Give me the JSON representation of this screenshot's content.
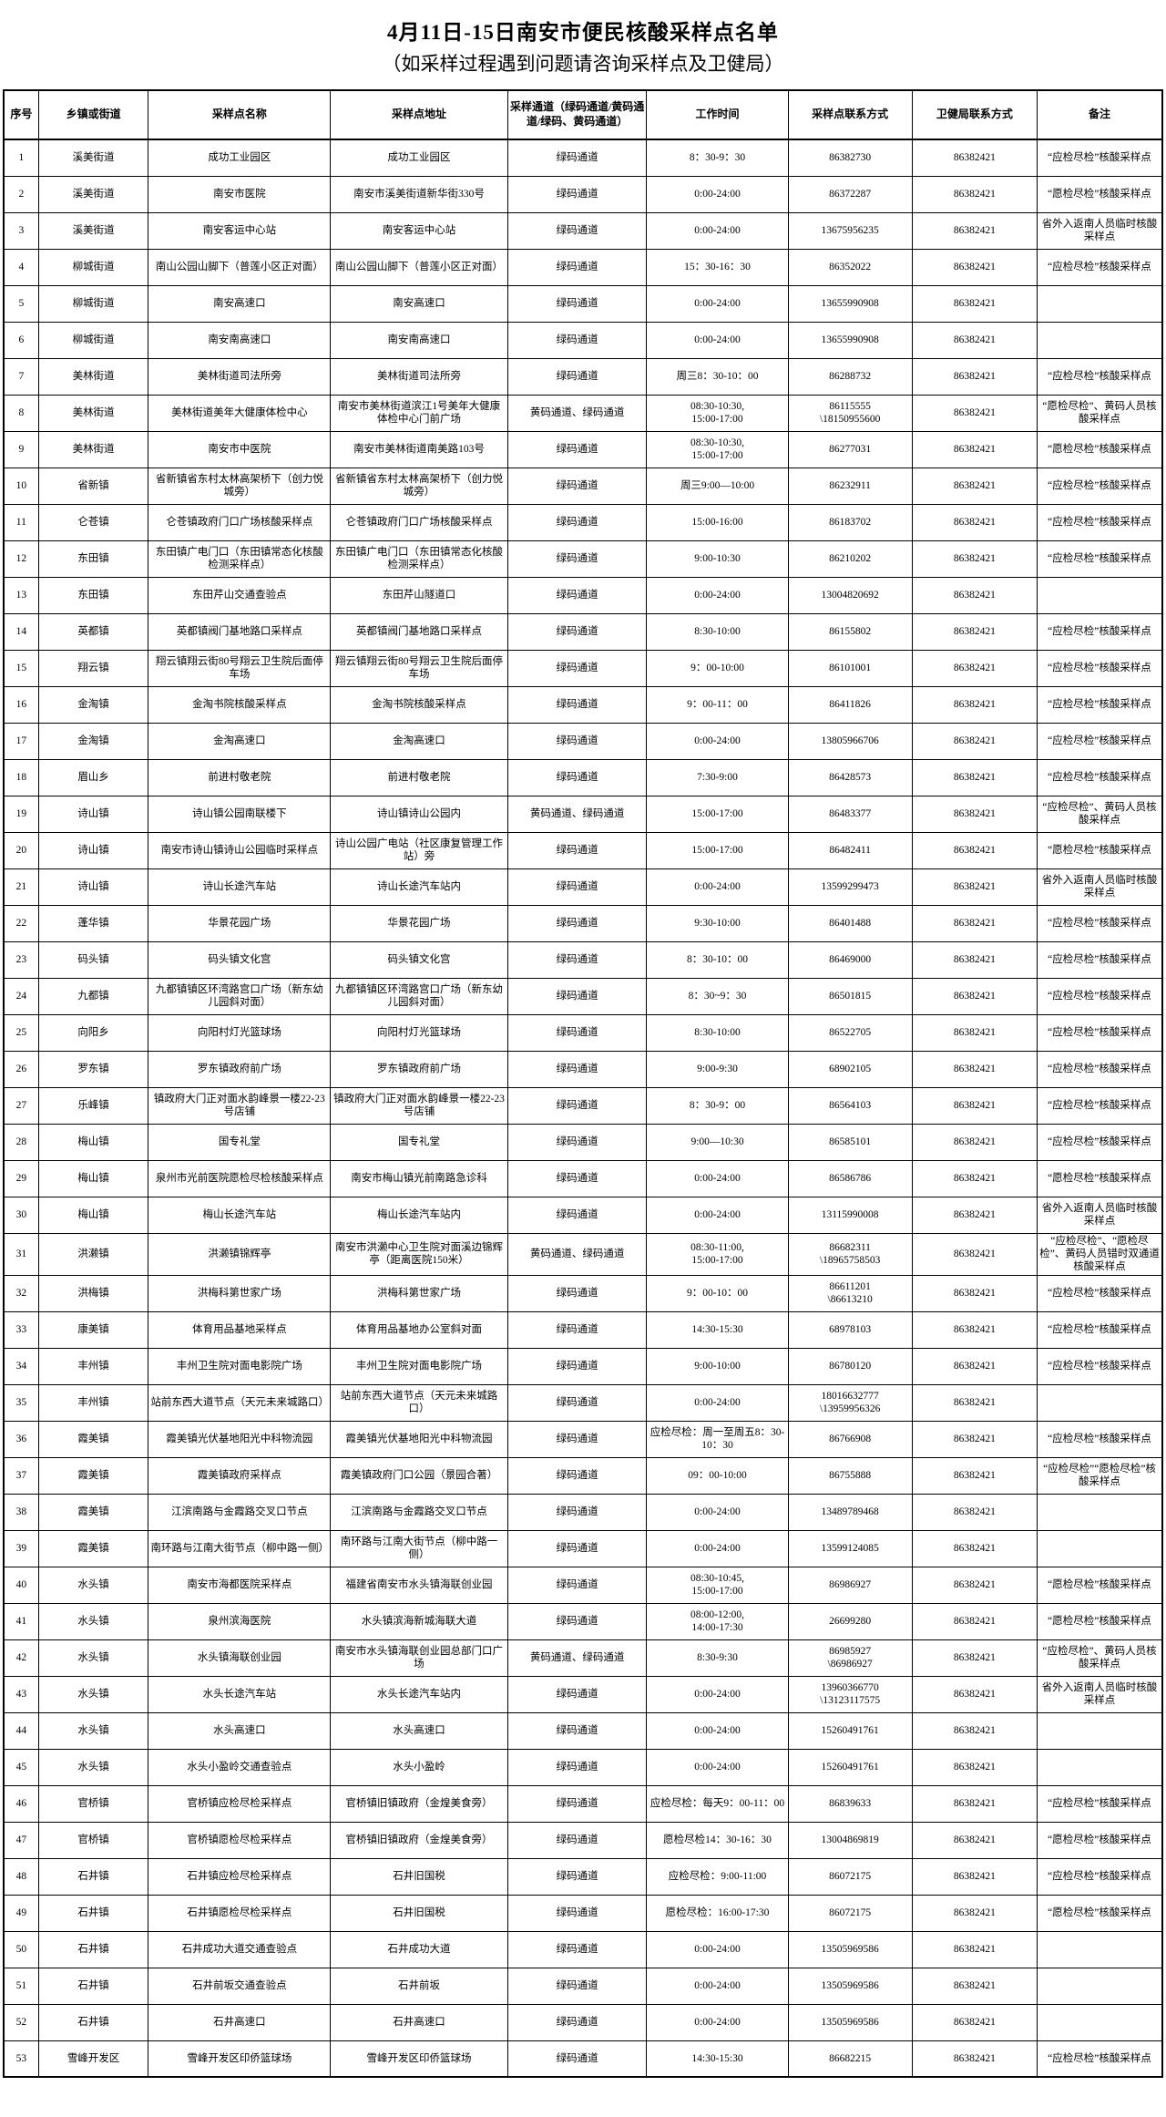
{
  "title": "4月11日-15日南安市便民核酸采样点名单",
  "subtitle": "（如采样过程遇到问题请咨询采样点及卫健局）",
  "table": {
    "headers": [
      "序号",
      "乡镇或街道",
      "采样点名称",
      "采样点地址",
      "采样通道（绿码通道/黄码通道/绿码、黄码通道）",
      "工作时间",
      "采样点联系方式",
      "卫健局联系方式",
      "备注"
    ],
    "column_keys": [
      "row-number",
      "township",
      "site-name",
      "site-address",
      "channel",
      "work-hours",
      "site-contact",
      "health-bureau-contact",
      "remark"
    ],
    "col_widths_pct": [
      3.0,
      9.5,
      15.7,
      15.3,
      12.0,
      12.2,
      10.7,
      10.8,
      10.8
    ],
    "rows": [
      [
        "1",
        "溪美街道",
        "成功工业园区",
        "成功工业园区",
        "绿码通道",
        "8：30-9：30",
        "86382730",
        "86382421",
        "“应检尽检”核酸采样点"
      ],
      [
        "2",
        "溪美街道",
        "南安市医院",
        "南安市溪美街道新华街330号",
        "绿码通道",
        "0:00-24:00",
        "86372287",
        "86382421",
        "“愿检尽检”核酸采样点"
      ],
      [
        "3",
        "溪美街道",
        "南安客运中心站",
        "南安客运中心站",
        "绿码通道",
        "0:00-24:00",
        "13675956235",
        "86382421",
        "省外入返南人员临时核酸采样点"
      ],
      [
        "4",
        "柳城街道",
        "南山公园山脚下（普莲小区正对面）",
        "南山公园山脚下（普莲小区正对面）",
        "绿码通道",
        "15：30-16：30",
        "86352022",
        "86382421",
        "“应检尽检”核酸采样点"
      ],
      [
        "5",
        "柳城街道",
        "南安高速口",
        "南安高速口",
        "绿码通道",
        "0:00-24:00",
        "13655990908",
        "86382421",
        ""
      ],
      [
        "6",
        "柳城街道",
        "南安南高速口",
        "南安南高速口",
        "绿码通道",
        "0:00-24:00",
        "13655990908",
        "86382421",
        ""
      ],
      [
        "7",
        "美林街道",
        "美林街道司法所旁",
        "美林街道司法所旁",
        "绿码通道",
        "周三8：30-10：00",
        "86288732",
        "86382421",
        "“应检尽检”核酸采样点"
      ],
      [
        "8",
        "美林街道",
        "美林街道美年大健康体检中心",
        "南安市美林街道滨江1号美年大健康体检中心门前广场",
        "黄码通道、绿码通道",
        "08:30-10:30,\n15:00-17:00",
        "86115555\n\\18150955600",
        "86382421",
        "“愿检尽检”、黄码人员核酸采样点"
      ],
      [
        "9",
        "美林街道",
        "南安市中医院",
        "南安市美林街道南美路103号",
        "绿码通道",
        "08:30-10:30,\n15:00-17:00",
        "86277031",
        "86382421",
        "“愿检尽检”核酸采样点"
      ],
      [
        "10",
        "省新镇",
        "省新镇省东村太林高架桥下（创力悦城旁）",
        "省新镇省东村太林高架桥下（创力悦城旁）",
        "绿码通道",
        "周三9:00—10:00",
        "86232911",
        "86382421",
        "“应检尽检”核酸采样点"
      ],
      [
        "11",
        "仑苍镇",
        "仑苍镇政府门口广场核酸采样点",
        "仑苍镇政府门口广场核酸采样点",
        "绿码通道",
        "15:00-16:00",
        "86183702",
        "86382421",
        "“应检尽检”核酸采样点"
      ],
      [
        "12",
        "东田镇",
        "东田镇广电门口（东田镇常态化核酸检测采样点）",
        "东田镇广电门口（东田镇常态化核酸检测采样点）",
        "绿码通道",
        "9:00-10:30",
        "86210202",
        "86382421",
        "“应检尽检”核酸采样点"
      ],
      [
        "13",
        "东田镇",
        "东田芹山交通查验点",
        "东田芹山隧道口",
        "绿码通道",
        "0:00-24:00",
        "13004820692",
        "86382421",
        ""
      ],
      [
        "14",
        "英都镇",
        "英都镇阀门基地路口采样点",
        "英都镇阀门基地路口采样点",
        "绿码通道",
        "8:30-10:00",
        "86155802",
        "86382421",
        "“应检尽检”核酸采样点"
      ],
      [
        "15",
        "翔云镇",
        "翔云镇翔云街80号翔云卫生院后面停车场",
        "翔云镇翔云街80号翔云卫生院后面停车场",
        "绿码通道",
        "9：00-10:00",
        "86101001",
        "86382421",
        "“应检尽检”核酸采样点"
      ],
      [
        "16",
        "金淘镇",
        "金淘书院核酸采样点",
        "金淘书院核酸采样点",
        "绿码通道",
        "9：00-11：00",
        "86411826",
        "86382421",
        "“应检尽检”核酸采样点"
      ],
      [
        "17",
        "金淘镇",
        "金淘高速口",
        "金淘高速口",
        "绿码通道",
        "0:00-24:00",
        "13805966706",
        "86382421",
        "“应检尽检”核酸采样点"
      ],
      [
        "18",
        "眉山乡",
        "前进村敬老院",
        "前进村敬老院",
        "绿码通道",
        "7:30-9:00",
        "86428573",
        "86382421",
        "“应检尽检”核酸采样点"
      ],
      [
        "19",
        "诗山镇",
        "诗山镇公园南联楼下",
        "诗山镇诗山公园内",
        "黄码通道、绿码通道",
        "15:00-17:00",
        "86483377",
        "86382421",
        "“应检尽检”、黄码人员核酸采样点"
      ],
      [
        "20",
        "诗山镇",
        "南安市诗山镇诗山公园临时采样点",
        "诗山公园广电站（社区康复管理工作站）旁",
        "绿码通道",
        "15:00-17:00",
        "86482411",
        "86382421",
        "“愿检尽检”核酸采样点"
      ],
      [
        "21",
        "诗山镇",
        "诗山长途汽车站",
        "诗山长途汽车站内",
        "绿码通道",
        "0:00-24:00",
        "13599299473",
        "86382421",
        "省外入返南人员临时核酸采样点"
      ],
      [
        "22",
        "蓬华镇",
        "华景花园广场",
        "华景花园广场",
        "绿码通道",
        "9:30-10:00",
        "86401488",
        "86382421",
        "“应检尽检”核酸采样点"
      ],
      [
        "23",
        "码头镇",
        "码头镇文化宫",
        "码头镇文化宫",
        "绿码通道",
        "8：30-10：00",
        "86469000",
        "86382421",
        "“应检尽检”核酸采样点"
      ],
      [
        "24",
        "九都镇",
        "九都镇镇区环湾路宫口广场（新东幼儿园斜对面）",
        "九都镇镇区环湾路宫口广场（新东幼儿园斜对面）",
        "绿码通道",
        "8：30~9：30",
        "86501815",
        "86382421",
        "“应检尽检”核酸采样点"
      ],
      [
        "25",
        "向阳乡",
        "向阳村灯光篮球场",
        "向阳村灯光篮球场",
        "绿码通道",
        "8:30-10:00",
        "86522705",
        "86382421",
        "“应检尽检”核酸采样点"
      ],
      [
        "26",
        "罗东镇",
        "罗东镇政府前广场",
        "罗东镇政府前广场",
        "绿码通道",
        "9:00-9:30",
        "68902105",
        "86382421",
        "“应检尽检”核酸采样点"
      ],
      [
        "27",
        "乐峰镇",
        "镇政府大门正对面水韵峰景一楼22-23号店铺",
        "镇政府大门正对面水韵峰景一楼22-23号店铺",
        "绿码通道",
        "8：30-9：00",
        "86564103",
        "86382421",
        "“应检尽检”核酸采样点"
      ],
      [
        "28",
        "梅山镇",
        "国专礼堂",
        "国专礼堂",
        "绿码通道",
        "9:00—10:30",
        "86585101",
        "86382421",
        "“应检尽检”核酸采样点"
      ],
      [
        "29",
        "梅山镇",
        "泉州市光前医院愿检尽检核酸采样点",
        "南安市梅山镇光前南路急诊科",
        "绿码通道",
        "0:00-24:00",
        "86586786",
        "86382421",
        "“愿检尽检”核酸采样点"
      ],
      [
        "30",
        "梅山镇",
        "梅山长途汽车站",
        "梅山长途汽车站内",
        "绿码通道",
        "0:00-24:00",
        "13115990008",
        "86382421",
        "省外入返南人员临时核酸采样点"
      ],
      [
        "31",
        "洪濑镇",
        "洪濑镇锦辉亭",
        "南安市洪濑中心卫生院对面溪边锦辉亭（距离医院150米）",
        "黄码通道、绿码通道",
        "08:30-11:00,\n15:00-17:00",
        "86682311\n\\18965758503",
        "86382421",
        "“应检尽检”、“愿检尽检”、黄码人员错时双通道核酸采样点"
      ],
      [
        "32",
        "洪梅镇",
        "洪梅科第世家广场",
        "洪梅科第世家广场",
        "绿码通道",
        "9：00-10：00",
        "86611201\n\\86613210",
        "86382421",
        "“应检尽检”核酸采样点"
      ],
      [
        "33",
        "康美镇",
        "体育用品基地采样点",
        "体育用品基地办公室斜对面",
        "绿码通道",
        "14:30-15:30",
        "68978103",
        "86382421",
        "“应检尽检”核酸采样点"
      ],
      [
        "34",
        "丰州镇",
        "丰州卫生院对面电影院广场",
        "丰州卫生院对面电影院广场",
        "绿码通道",
        "9:00-10:00",
        "86780120",
        "86382421",
        "“应检尽检”核酸采样点"
      ],
      [
        "35",
        "丰州镇",
        "站前东西大道节点（天元未来城路口）",
        "站前东西大道节点（天元未来城路口）",
        "绿码通道",
        "0:00-24:00",
        "18016632777\n\\13959956326",
        "86382421",
        ""
      ],
      [
        "36",
        "霞美镇",
        "霞美镇光伏基地阳光中科物流园",
        "霞美镇光伏基地阳光中科物流园",
        "绿码通道",
        "应检尽检：周一至周五8：30-10：30",
        "86766908",
        "86382421",
        "“应检尽检”核酸采样点"
      ],
      [
        "37",
        "霞美镇",
        "霞美镇政府采样点",
        "霞美镇政府门口公园（景园合著）",
        "绿码通道",
        "09：00-10:00",
        "86755888",
        "86382421",
        "“应检尽检”“愿检尽检”核酸采样点"
      ],
      [
        "38",
        "霞美镇",
        "江滨南路与金霞路交叉口节点",
        "江滨南路与金霞路交叉口节点",
        "绿码通道",
        "0:00-24:00",
        "13489789468",
        "86382421",
        ""
      ],
      [
        "39",
        "霞美镇",
        "南环路与江南大街节点（柳中路一侧）",
        "南环路与江南大街节点（柳中路一侧）",
        "绿码通道",
        "0:00-24:00",
        "13599124085",
        "86382421",
        ""
      ],
      [
        "40",
        "水头镇",
        "南安市海都医院采样点",
        "福建省南安市水头镇海联创业园",
        "绿码通道",
        "08:30-10:45,\n15:00-17:00",
        "86986927",
        "86382421",
        "“愿检尽检”核酸采样点"
      ],
      [
        "41",
        "水头镇",
        "泉州滨海医院",
        "水头镇滨海新城海联大道",
        "绿码通道",
        "08:00-12:00,\n14:00-17:30",
        "26699280",
        "86382421",
        "“愿检尽检”核酸采样点"
      ],
      [
        "42",
        "水头镇",
        "水头镇海联创业园",
        "南安市水头镇海联创业园总部门口广场",
        "黄码通道、绿码通道",
        "8:30-9:30",
        "86985927\n\\86986927",
        "86382421",
        "“应检尽检”、黄码人员核酸采样点"
      ],
      [
        "43",
        "水头镇",
        "水头长途汽车站",
        "水头长途汽车站内",
        "绿码通道",
        "0:00-24:00",
        "13960366770\n\\13123117575",
        "86382421",
        "省外入返南人员临时核酸采样点"
      ],
      [
        "44",
        "水头镇",
        "水头高速口",
        "水头高速口",
        "绿码通道",
        "0:00-24:00",
        "15260491761",
        "86382421",
        ""
      ],
      [
        "45",
        "水头镇",
        "水头小盈岭交通查验点",
        "水头小盈岭",
        "绿码通道",
        "0:00-24:00",
        "15260491761",
        "86382421",
        ""
      ],
      [
        "46",
        "官桥镇",
        "官桥镇应检尽检采样点",
        "官桥镇旧镇政府（金煌美食旁）",
        "绿码通道",
        "应检尽检：每天9：00-11：00",
        "86839633",
        "86382421",
        "“应检尽检”核酸采样点"
      ],
      [
        "47",
        "官桥镇",
        "官桥镇愿检尽检采样点",
        "官桥镇旧镇政府（金煌美食旁）",
        "绿码通道",
        "愿检尽检14：30-16：30",
        "13004869819",
        "86382421",
        "“愿检尽检”核酸采样点"
      ],
      [
        "48",
        "石井镇",
        "石井镇应检尽检采样点",
        "石井旧国税",
        "绿码通道",
        "应检尽检：9:00-11:00",
        "86072175",
        "86382421",
        "“应检尽检”核酸采样点"
      ],
      [
        "49",
        "石井镇",
        "石井镇愿检尽检采样点",
        "石井旧国税",
        "绿码通道",
        "愿检尽检：16:00-17:30",
        "86072175",
        "86382421",
        "“愿检尽检”核酸采样点"
      ],
      [
        "50",
        "石井镇",
        "石井成功大道交通查验点",
        "石井成功大道",
        "绿码通道",
        "0:00-24:00",
        "13505969586",
        "86382421",
        ""
      ],
      [
        "51",
        "石井镇",
        "石井前坂交通查验点",
        "石井前坂",
        "绿码通道",
        "0:00-24:00",
        "13505969586",
        "86382421",
        ""
      ],
      [
        "52",
        "石井镇",
        "石井高速口",
        "石井高速口",
        "绿码通道",
        "0:00-24:00",
        "13505969586",
        "86382421",
        ""
      ],
      [
        "53",
        "雪峰开发区",
        "雪峰开发区印侨篮球场",
        "雪峰开发区印侨篮球场",
        "绿码通道",
        "14:30-15:30",
        "86682215",
        "86382421",
        "“应检尽检”核酸采样点"
      ]
    ]
  }
}
